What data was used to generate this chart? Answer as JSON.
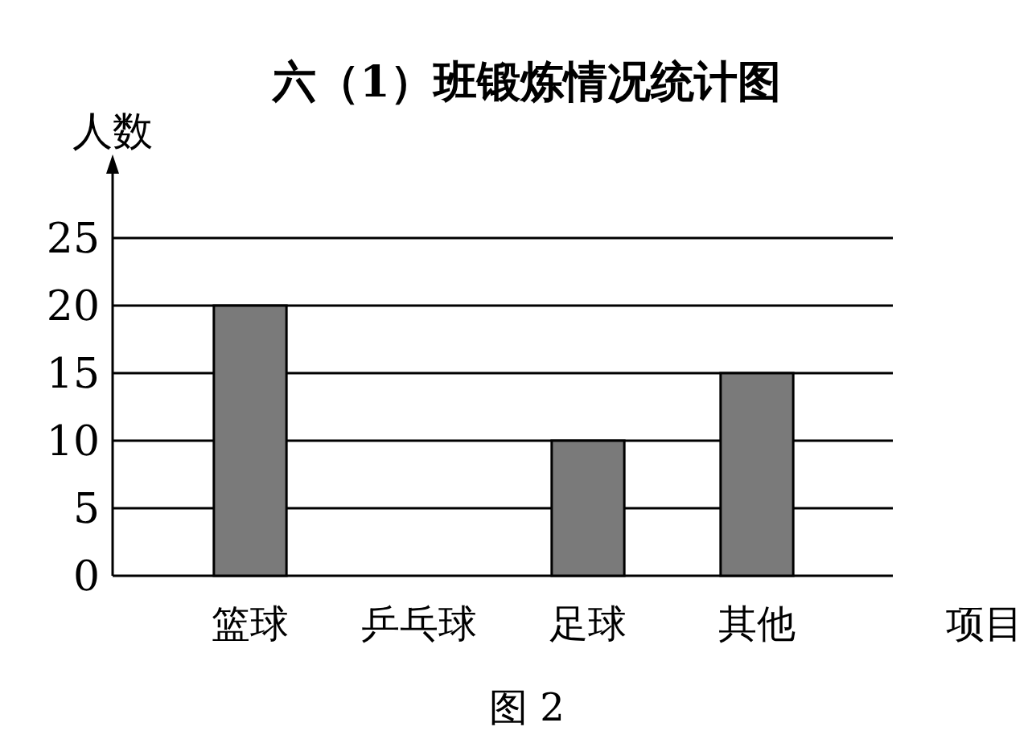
{
  "chart_data": {
    "type": "bar",
    "title": "六（1）班锻炼情况统计图",
    "ylabel": "人数",
    "xlabel": "项目",
    "categories": [
      "篮球",
      "乒乓球",
      "足球",
      "其他"
    ],
    "values": [
      20,
      null,
      10,
      15
    ],
    "color": "#7a7a7a",
    "ylim": [
      0,
      25
    ],
    "yticks": [
      0,
      5,
      10,
      15,
      20,
      25
    ],
    "grid": "y",
    "annotations": [
      "图 2"
    ]
  }
}
